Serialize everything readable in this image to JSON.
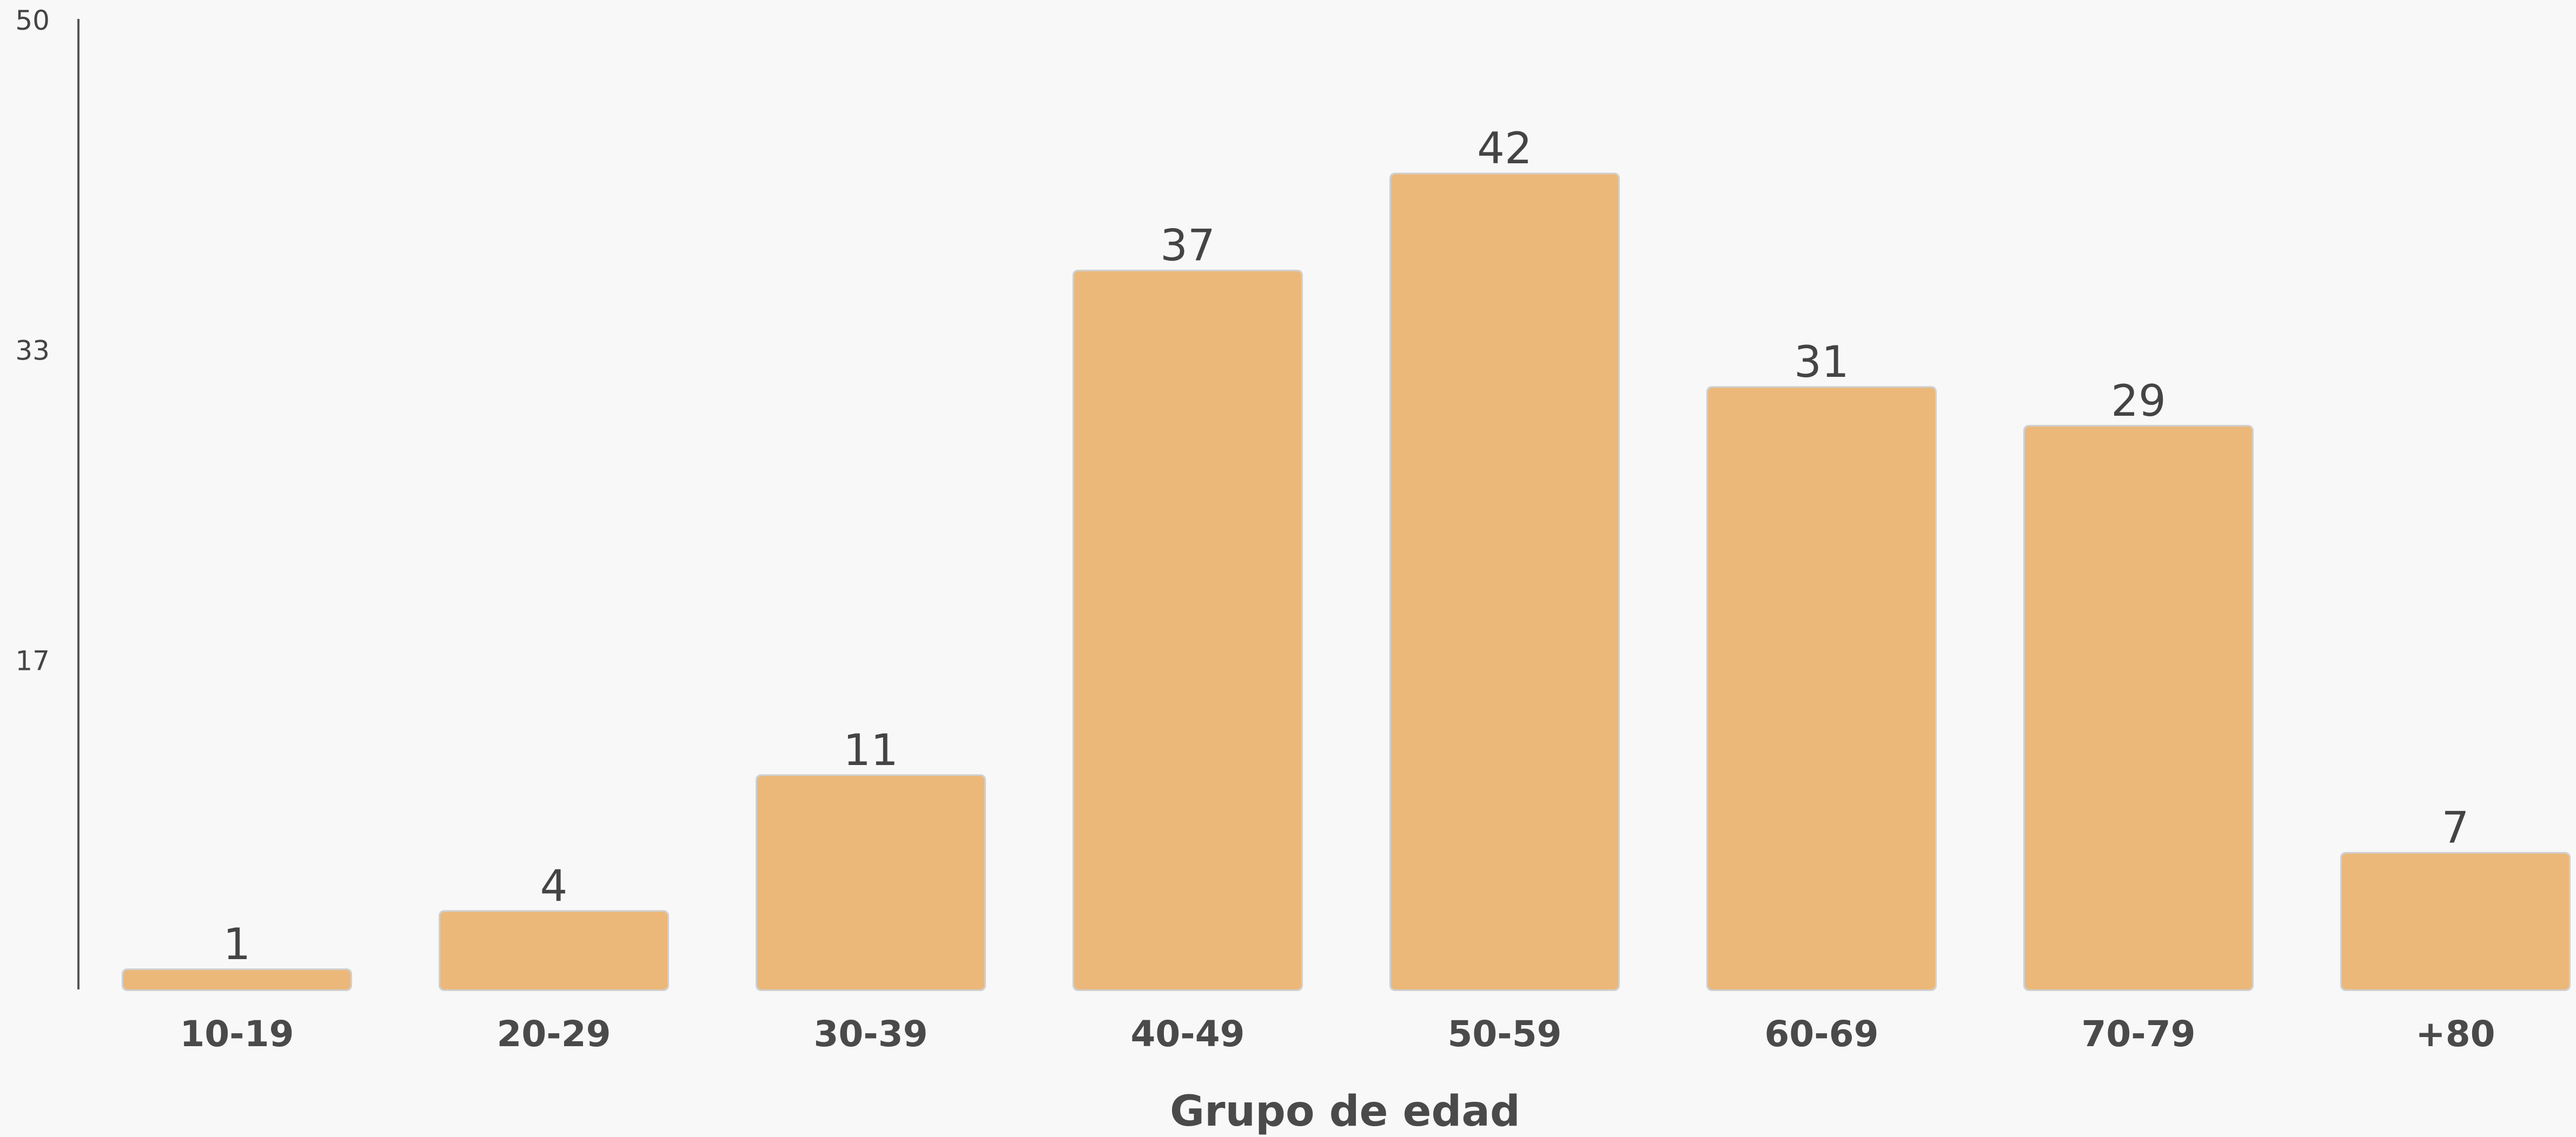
{
  "chart_data": {
    "type": "bar",
    "categories": [
      "10-19",
      "20-29",
      "30-39",
      "40-49",
      "50-59",
      "60-69",
      "70-79",
      "+80"
    ],
    "values": [
      1,
      4,
      11,
      37,
      42,
      31,
      29,
      7
    ],
    "xlabel": "Grupo de edad",
    "ylabel": "",
    "ylim": [
      0,
      50
    ],
    "yticks": [
      17,
      33,
      50
    ],
    "grid": false,
    "bar_color": "#ebb87a",
    "show_value_labels": true
  }
}
